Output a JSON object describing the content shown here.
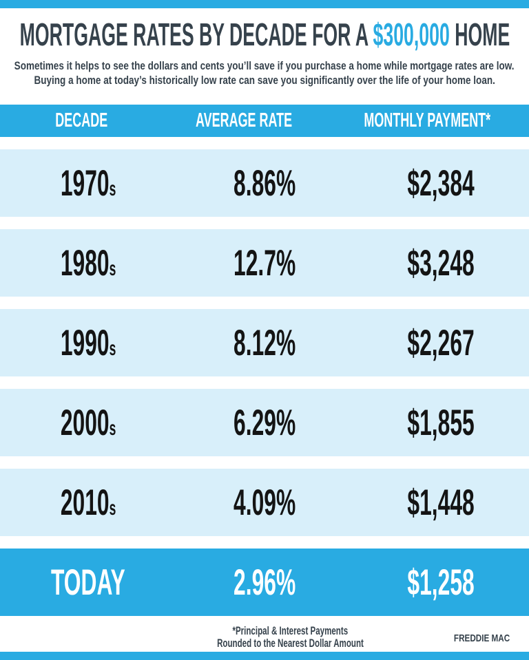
{
  "page": {
    "accent_blue": "#29abe2",
    "row_light_blue": "#d8effa",
    "dark_text": "#36424c",
    "value_text": "#141414",
    "background": "#ffffff"
  },
  "header": {
    "title_prefix": "MORTGAGE RATES BY DECADE FOR A ",
    "title_highlight": "$300,000",
    "title_suffix": " HOME",
    "subtitle_line1": "Sometimes it helps to see the dollars and cents you’ll save if you purchase a home while mortgage rates are low.",
    "subtitle_line2": "Buying a home at today’s historically low rate can save you significantly over the life of your home loan."
  },
  "table": {
    "columns": [
      "DECADE",
      "AVERAGE RATE",
      "MONTHLY PAYMENT*"
    ],
    "rows": [
      {
        "decade": "1970",
        "suffix": "s",
        "rate": "8.86%",
        "payment": "$2,384"
      },
      {
        "decade": "1980",
        "suffix": "s",
        "rate": "12.7%",
        "payment": "$3,248"
      },
      {
        "decade": "1990",
        "suffix": "s",
        "rate": "8.12%",
        "payment": "$2,267"
      },
      {
        "decade": "2000",
        "suffix": "s",
        "rate": "6.29%",
        "payment": "$1,855"
      },
      {
        "decade": "2010",
        "suffix": "s",
        "rate": "4.09%",
        "payment": "$1,448"
      },
      {
        "decade": "TODAY",
        "suffix": "",
        "rate": "2.96%",
        "payment": "$1,258"
      }
    ]
  },
  "footer": {
    "note_line1": "*Principal & Interest Payments",
    "note_line2": "Rounded to the Nearest Dollar Amount",
    "source": "FREDDIE MAC"
  },
  "chart_data": {
    "type": "table",
    "title": "Mortgage Rates by Decade for a $300,000 Home",
    "columns": [
      "Decade",
      "Average Rate",
      "Monthly Payment*"
    ],
    "categories": [
      "1970s",
      "1980s",
      "1990s",
      "2000s",
      "2010s",
      "Today"
    ],
    "series": [
      {
        "name": "Average Rate (%)",
        "values": [
          8.86,
          12.7,
          8.12,
          6.29,
          4.09,
          2.96
        ]
      },
      {
        "name": "Monthly Payment ($)",
        "values": [
          2384,
          3248,
          2267,
          1855,
          1448,
          1258
        ]
      }
    ],
    "notes": "Principal & Interest Payments Rounded to the Nearest Dollar Amount",
    "source": "Freddie Mac"
  }
}
